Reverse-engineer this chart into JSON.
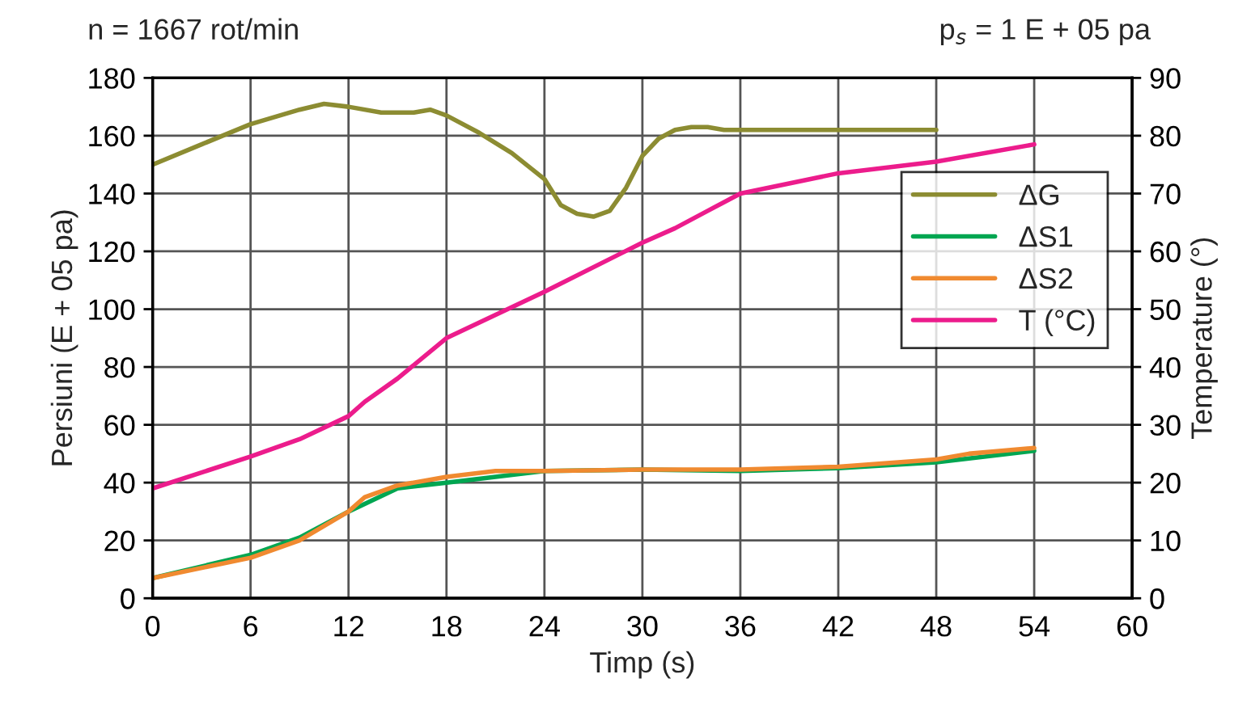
{
  "chart_data": {
    "type": "line",
    "xlabel": "Timp (s)",
    "ylabel": "Persiuni (E + 05 pa)",
    "y2label": "Temperature (°)",
    "annotations": [
      "n = 1667 rot/min",
      "p$_{s}$ = 1 E + 05 pa"
    ],
    "xlim": [
      0,
      60
    ],
    "xticks": [
      0,
      6,
      12,
      18,
      24,
      30,
      36,
      42,
      48,
      54,
      60
    ],
    "ylim": [
      0,
      180
    ],
    "yticks": [
      0,
      20,
      40,
      60,
      80,
      100,
      120,
      140,
      160,
      180
    ],
    "y2lim": [
      0,
      90
    ],
    "y2ticks": [
      0,
      10,
      20,
      30,
      40,
      50,
      60,
      70,
      80,
      90
    ],
    "grid": true,
    "legend": "right",
    "line_style": "solid",
    "marker": "none",
    "series": [
      {
        "name": "ΔG",
        "color": "#8c8c32",
        "x": [
          0,
          3,
          6,
          9,
          10.5,
          12,
          14,
          16,
          17,
          18,
          20,
          22,
          24,
          25,
          26,
          27,
          28,
          29,
          30,
          31,
          32,
          33,
          34,
          35,
          36,
          42,
          48
        ],
        "values": [
          150,
          157,
          164,
          169,
          171,
          170,
          168,
          168,
          169,
          167,
          161,
          154,
          145,
          136,
          133,
          132,
          134,
          142,
          153,
          159,
          162,
          163,
          163,
          162,
          162,
          162,
          162
        ]
      },
      {
        "name": "ΔS1",
        "color": "#00a651",
        "x": [
          0,
          6,
          9,
          12,
          15,
          18,
          24,
          30,
          36,
          42,
          48,
          54
        ],
        "values": [
          7,
          15,
          21,
          30,
          38,
          40,
          44,
          44.5,
          44,
          45,
          47,
          51
        ]
      },
      {
        "name": "ΔS2",
        "color": "#f08a30",
        "x": [
          0,
          6,
          9,
          12,
          13,
          15,
          18,
          21,
          24,
          30,
          36,
          42,
          48,
          50,
          54
        ],
        "values": [
          7,
          14,
          20,
          30,
          35,
          39,
          42,
          44,
          44,
          44.5,
          44.5,
          45.5,
          48,
          50,
          52
        ]
      },
      {
        "name": "T (°C)",
        "color": "#ec1c8c",
        "axis": "y2",
        "x": [
          0,
          6,
          9,
          12,
          13,
          15,
          18,
          24,
          30,
          32,
          34,
          36,
          42,
          48,
          54
        ],
        "values": [
          19,
          24.5,
          27.5,
          31.5,
          34,
          38,
          45,
          53,
          61.5,
          64,
          67,
          70,
          73.5,
          75.5,
          78.5
        ]
      }
    ]
  }
}
